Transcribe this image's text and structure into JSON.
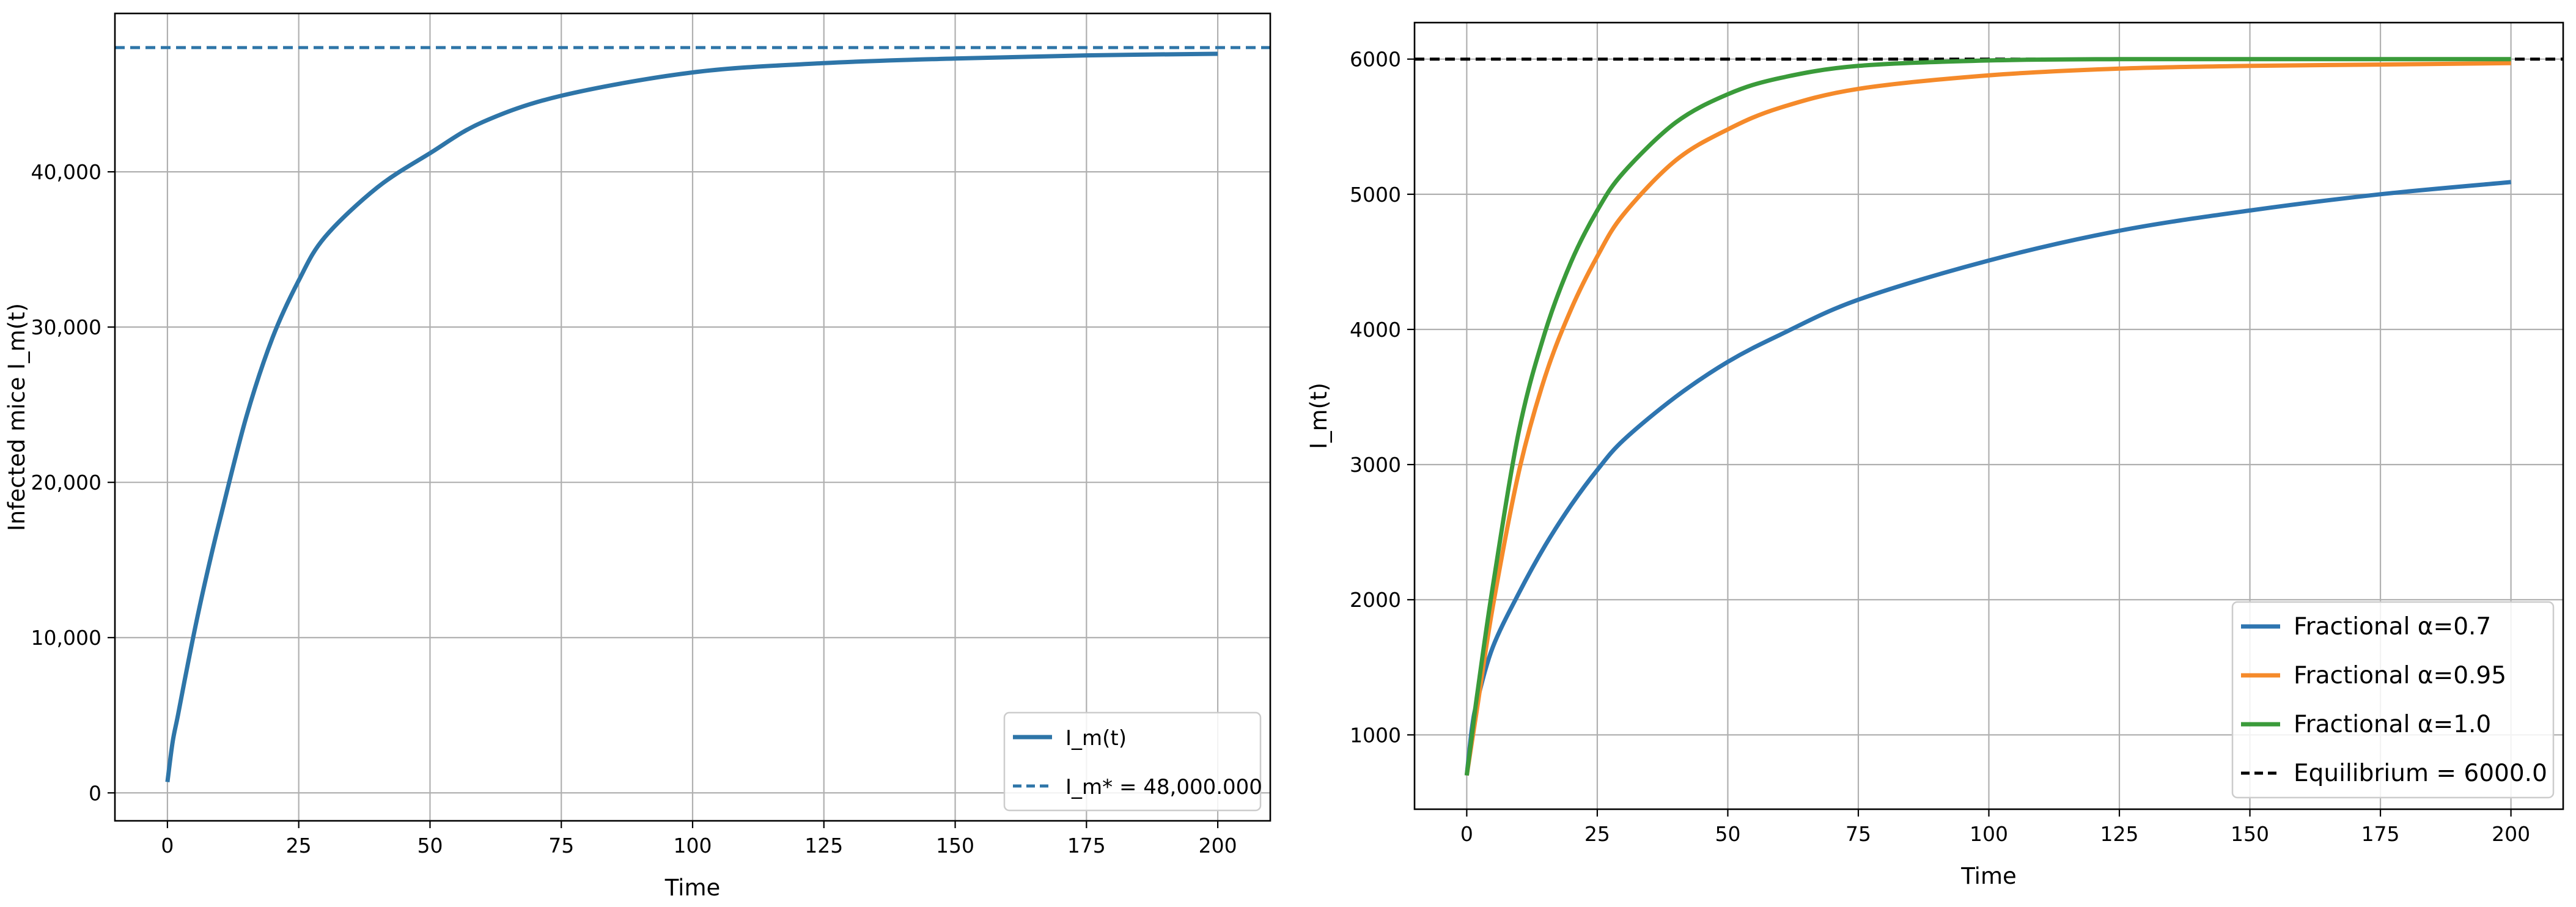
{
  "chart_data": [
    {
      "type": "line",
      "xlabel": "Time",
      "ylabel": "Infected mice I_m(t)",
      "xlim": [
        -10,
        210
      ],
      "ylim": [
        -1800,
        50200
      ],
      "xticks": [
        0,
        25,
        50,
        75,
        100,
        125,
        150,
        175,
        200
      ],
      "xtick_labels": [
        "0",
        "25",
        "50",
        "75",
        "100",
        "125",
        "150",
        "175",
        "200"
      ],
      "yticks": [
        0,
        10000,
        20000,
        30000,
        40000
      ],
      "ytick_labels": [
        "0",
        "10,000",
        "20,000",
        "30,000",
        "40,000"
      ],
      "grid": true,
      "legend_position": "lower-right",
      "series": [
        {
          "name": "I_m(t)",
          "color": "#2e75a8",
          "style": "solid",
          "x": [
            0,
            1,
            2,
            4,
            6,
            8,
            10,
            15,
            20,
            25,
            30,
            40,
            50,
            60,
            75,
            100,
            125,
            150,
            175,
            200
          ],
          "y": [
            700,
            3300,
            5000,
            8500,
            11800,
            14800,
            17600,
            24200,
            29300,
            33000,
            35800,
            39000,
            41200,
            43200,
            44900,
            46400,
            47000,
            47300,
            47500,
            47600
          ]
        }
      ],
      "reference_lines": [
        {
          "name": "I_m* = 48,000.000",
          "y": 48000,
          "color": "#2e75a8",
          "style": "dashed"
        }
      ]
    },
    {
      "type": "line",
      "xlabel": "Time",
      "ylabel": "I_m(t)",
      "xlim": [
        -10,
        210
      ],
      "ylim": [
        450,
        6270
      ],
      "xticks": [
        0,
        25,
        50,
        75,
        100,
        125,
        150,
        175,
        200
      ],
      "xtick_labels": [
        "0",
        "25",
        "50",
        "75",
        "100",
        "125",
        "150",
        "175",
        "200"
      ],
      "yticks": [
        1000,
        2000,
        3000,
        4000,
        5000,
        6000
      ],
      "ytick_labels": [
        "1000",
        "2000",
        "3000",
        "4000",
        "5000",
        "6000"
      ],
      "grid": true,
      "legend_position": "lower-right",
      "series": [
        {
          "name": "Fractional α=0.7",
          "color": "#2e75b0",
          "style": "solid",
          "x": [
            0,
            1,
            2,
            5,
            10,
            15,
            20,
            25,
            30,
            40,
            50,
            60,
            75,
            100,
            125,
            150,
            175,
            200
          ],
          "y": [
            700,
            1050,
            1250,
            1650,
            2050,
            2400,
            2700,
            2960,
            3180,
            3500,
            3760,
            3960,
            4220,
            4510,
            4730,
            4880,
            5000,
            5090
          ]
        },
        {
          "name": "Fractional α=0.95",
          "color": "#f58a2a",
          "style": "solid",
          "x": [
            0,
            1,
            2,
            5,
            10,
            15,
            20,
            25,
            30,
            40,
            50,
            60,
            75,
            100,
            125,
            150,
            175,
            200
          ],
          "y": [
            700,
            950,
            1200,
            1950,
            2950,
            3650,
            4150,
            4540,
            4850,
            5250,
            5480,
            5640,
            5780,
            5880,
            5930,
            5950,
            5960,
            5970
          ]
        },
        {
          "name": "Fractional α=1.0",
          "color": "#3a9b3a",
          "style": "solid",
          "x": [
            0,
            1,
            2,
            5,
            10,
            15,
            20,
            25,
            30,
            40,
            50,
            60,
            75,
            100,
            125,
            150,
            175,
            200
          ],
          "y": [
            700,
            1000,
            1300,
            2100,
            3250,
            3980,
            4500,
            4880,
            5160,
            5530,
            5740,
            5860,
            5950,
            5990,
            6000,
            6000,
            6000,
            6000
          ]
        }
      ],
      "reference_lines": [
        {
          "name": "Equilibrium = 6000.0",
          "y": 6000,
          "color": "#000000",
          "style": "dashed"
        }
      ]
    }
  ]
}
